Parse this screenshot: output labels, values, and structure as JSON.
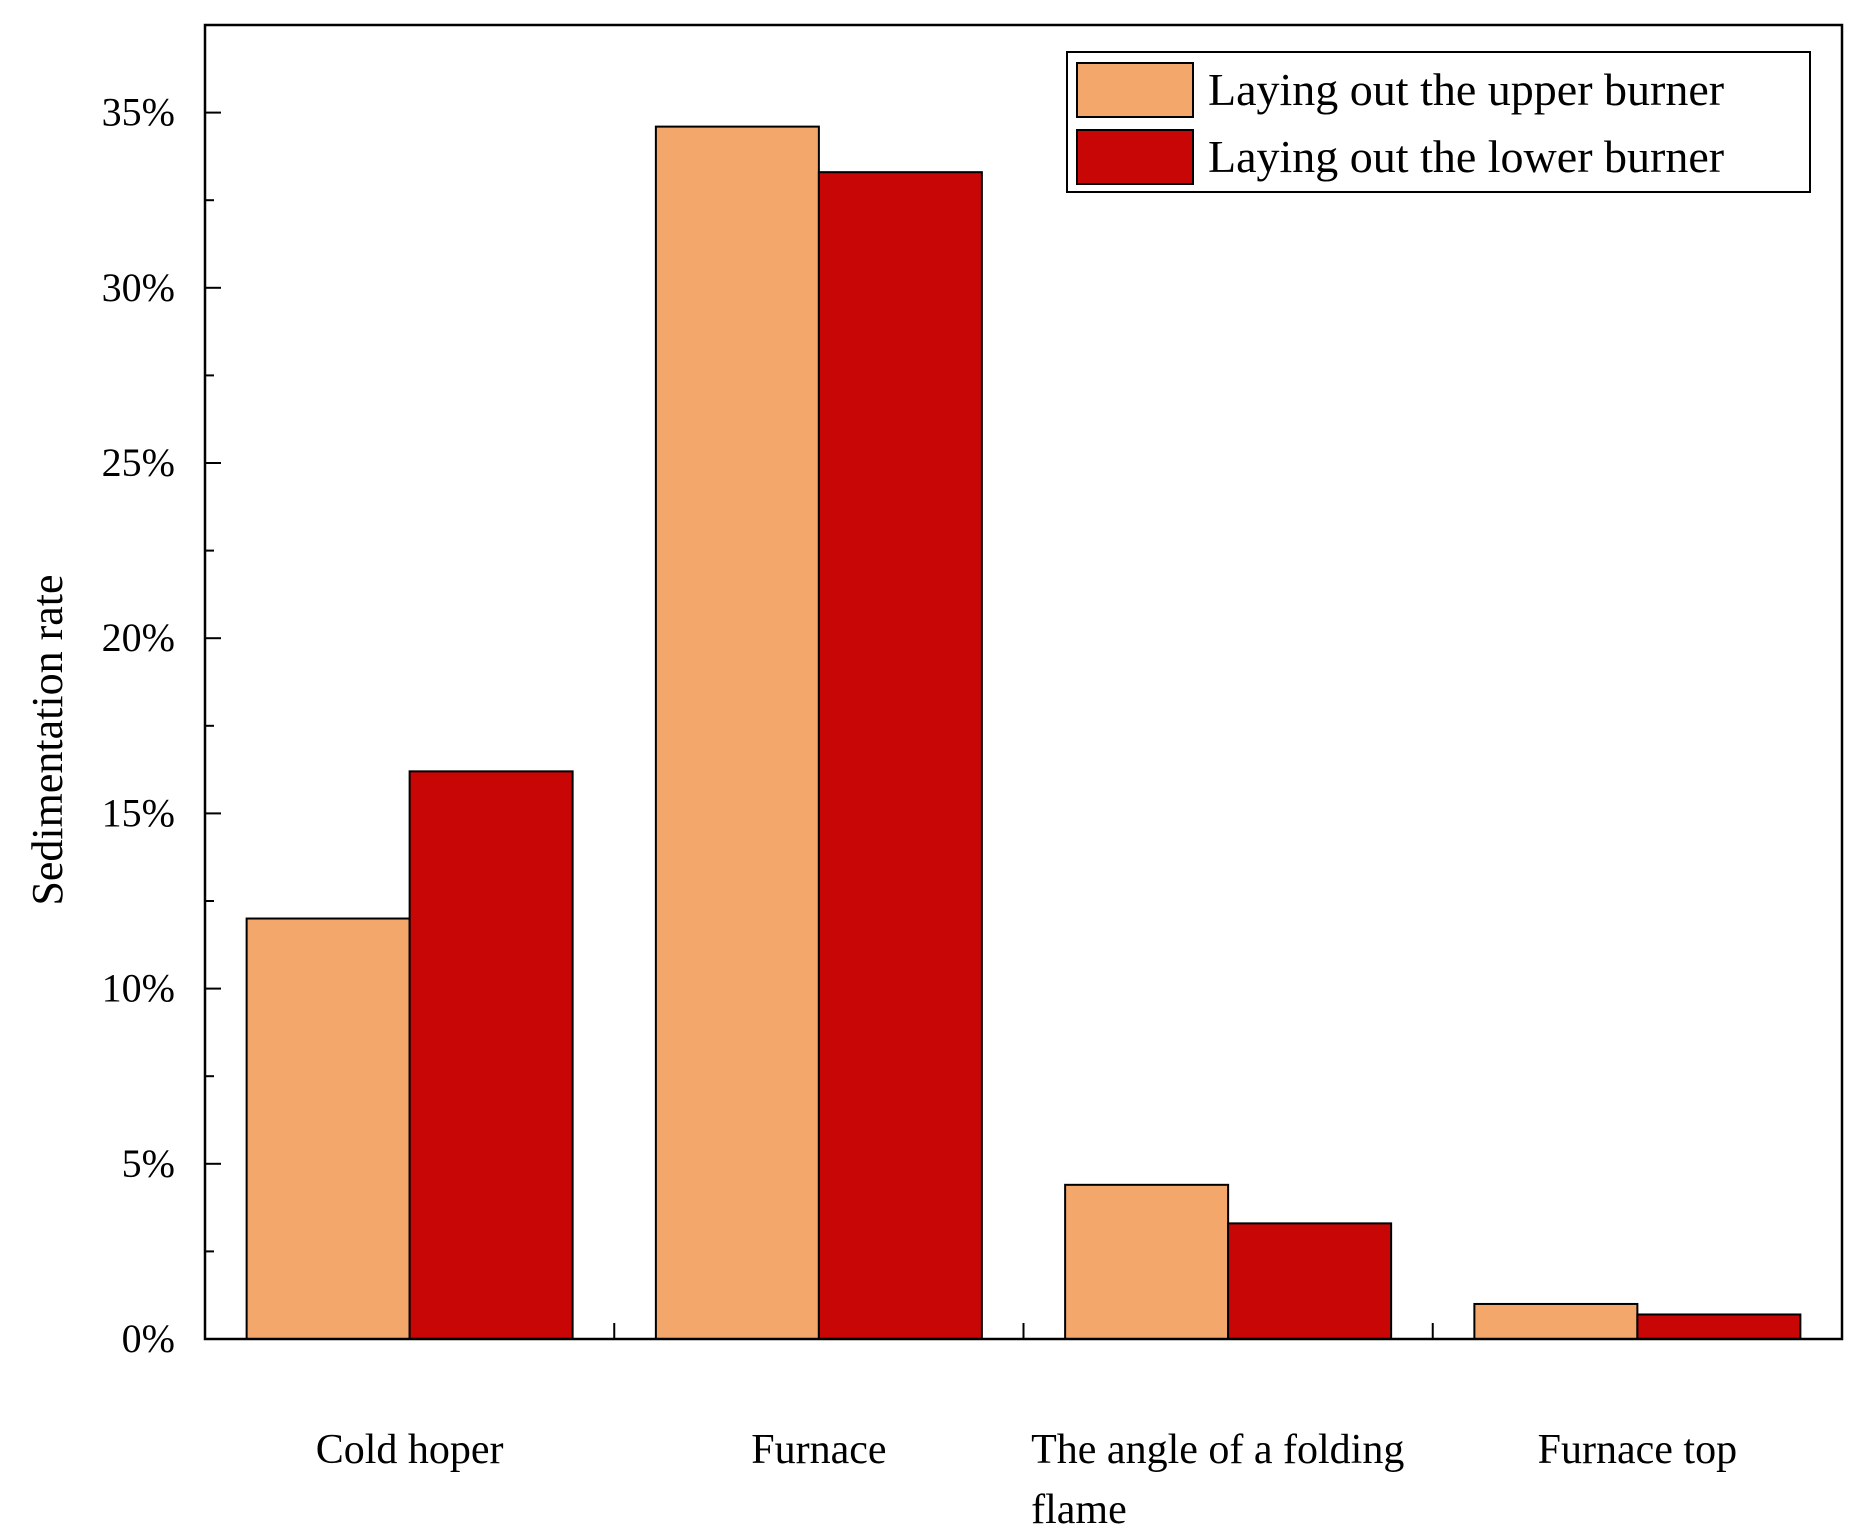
{
  "chart_data": {
    "type": "bar",
    "title": "",
    "xlabel": "",
    "ylabel": "Sedimentation rate",
    "ylim": [
      0,
      37.5
    ],
    "yticks": [
      0,
      5,
      10,
      15,
      20,
      25,
      30,
      35
    ],
    "ytick_labels": [
      "0%",
      "5%",
      "10%",
      "15%",
      "20%",
      "25%",
      "30%",
      "35%"
    ],
    "categories": [
      [
        "Cold hoper"
      ],
      [
        "Furnace"
      ],
      [
        "The angle of a folding",
        "flame"
      ],
      [
        "Furnace top"
      ]
    ],
    "series": [
      {
        "name": "Laying out the upper burner",
        "color": "#F4A76A",
        "values": [
          12.0,
          34.6,
          4.4,
          1.0
        ]
      },
      {
        "name": "Laying out the lower burner",
        "color": "#C80606",
        "values": [
          16.2,
          33.3,
          3.3,
          0.7
        ]
      }
    ],
    "grid": false,
    "legend_position": "top-right"
  }
}
